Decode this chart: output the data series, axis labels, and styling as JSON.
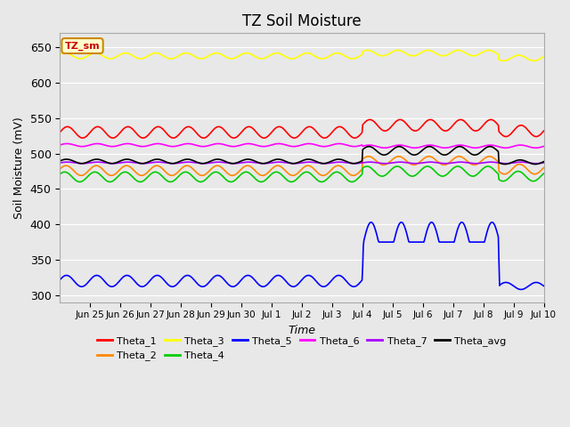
{
  "title": "TZ Soil Moisture",
  "ylabel": "Soil Moisture (mV)",
  "xlabel": "Time",
  "label_box_text": "TZ_sm",
  "background_color": "#e8e8e8",
  "axes_bg_color": "#e8e8e8",
  "series_order": [
    "Theta_1",
    "Theta_2",
    "Theta_3",
    "Theta_4",
    "Theta_5",
    "Theta_6",
    "Theta_7",
    "Theta_avg"
  ],
  "series": {
    "Theta_1": {
      "color": "#ff0000",
      "base": 530,
      "amp": 8,
      "period": 1.0,
      "phase": 0.0,
      "jump_base": 540,
      "jump_amp": 8,
      "post_base": 532,
      "post_amp": 8
    },
    "Theta_2": {
      "color": "#ff8800",
      "base": 476,
      "amp": 7,
      "period": 1.0,
      "phase": 0.3,
      "jump_base": 490,
      "jump_amp": 6,
      "post_base": 478,
      "post_amp": 7
    },
    "Theta_3": {
      "color": "#ffff00",
      "base": 638,
      "amp": 4,
      "period": 1.0,
      "phase": 0.5,
      "jump_base": 642,
      "jump_amp": 4,
      "post_base": 635,
      "post_amp": 4
    },
    "Theta_4": {
      "color": "#00cc00",
      "base": 467,
      "amp": 7,
      "period": 1.0,
      "phase": 0.6,
      "jump_base": 475,
      "jump_amp": 7,
      "post_base": 468,
      "post_amp": 7
    },
    "Theta_5": {
      "color": "#0000ff",
      "base": 320,
      "amp": 8,
      "period": 1.0,
      "phase": 0.2,
      "jump_base": 375,
      "jump_amp": 28,
      "post_base": 313,
      "post_amp": 5
    },
    "Theta_6": {
      "color": "#ff00ff",
      "base": 512,
      "amp": 2,
      "period": 1.0,
      "phase": 0.1,
      "jump_base": 510,
      "jump_amp": 2,
      "post_base": 510,
      "post_amp": 2
    },
    "Theta_7": {
      "color": "#aa00ff",
      "base": 487,
      "amp": 1,
      "period": 1.0,
      "phase": 0.0,
      "jump_base": 487,
      "jump_amp": 1,
      "post_base": 487,
      "post_amp": 1
    },
    "Theta_avg": {
      "color": "#000000",
      "base": 489,
      "amp": 3,
      "period": 1.0,
      "phase": 0.2,
      "jump_base": 504,
      "jump_amp": 6,
      "post_base": 488,
      "post_amp": 3
    }
  },
  "n_days": 16,
  "jump_day": 10,
  "jump2_day": 14.5,
  "ylim": [
    290,
    670
  ],
  "yticks": [
    300,
    350,
    400,
    450,
    500,
    550,
    600,
    650
  ],
  "xtick_positions": [
    1,
    2,
    3,
    4,
    5,
    6,
    7,
    8,
    9,
    10,
    11,
    12,
    13,
    14,
    15,
    16
  ],
  "xtick_labels": [
    "Jun 25",
    "Jun 26",
    "Jun 27",
    "Jun 28",
    "Jun 29",
    "Jun 30",
    "Jul 1",
    "Jul 2",
    "Jul 3",
    "Jul 4",
    "Jul 5",
    "Jul 6",
    "Jul 7",
    "Jul 8",
    "Jul 9",
    "Jul 10"
  ],
  "legend_entries": [
    "Theta_1",
    "Theta_2",
    "Theta_3",
    "Theta_4",
    "Theta_5",
    "Theta_6",
    "Theta_7",
    "Theta_avg"
  ],
  "legend_colors": [
    "#ff0000",
    "#ff8800",
    "#ffff00",
    "#00cc00",
    "#0000ff",
    "#ff00ff",
    "#aa00ff",
    "#000000"
  ]
}
